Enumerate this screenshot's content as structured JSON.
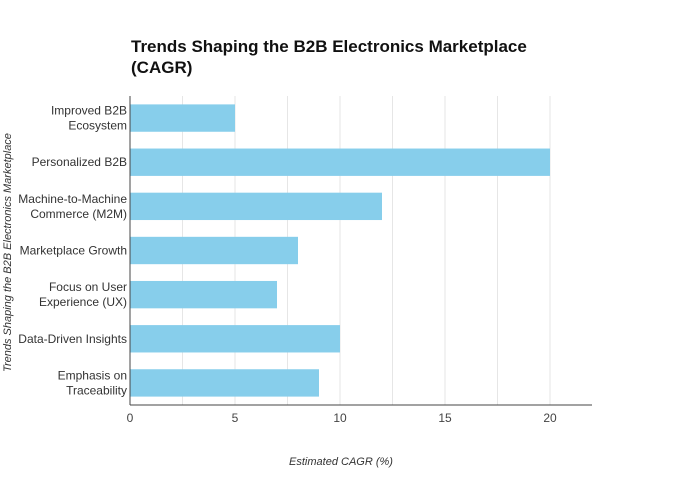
{
  "chart_data": {
    "type": "bar",
    "orientation": "horizontal",
    "title_lines": [
      "Trends Shaping the B2B Electronics Marketplace",
      "(CAGR)"
    ],
    "xlabel": "Estimated CAGR (%)",
    "ylabel": "Trends Shaping the B2B Electronics Marketplace",
    "categories": [
      {
        "lines": [
          "Improved B2B",
          "Ecosystem"
        ]
      },
      {
        "lines": [
          "Personalized B2B"
        ]
      },
      {
        "lines": [
          "Machine-to-Machine",
          "Commerce (M2M)"
        ]
      },
      {
        "lines": [
          "Marketplace Growth"
        ]
      },
      {
        "lines": [
          "Focus on User",
          "Experience (UX)"
        ]
      },
      {
        "lines": [
          "Data-Driven Insights"
        ]
      },
      {
        "lines": [
          "Emphasis on",
          "Traceability"
        ]
      }
    ],
    "values": [
      5,
      20,
      12,
      8,
      7,
      10,
      9
    ],
    "xlim": [
      0,
      22
    ],
    "xticks": [
      "0",
      "5",
      "10",
      "15",
      "20"
    ],
    "xtick_values": [
      0,
      5,
      10,
      15,
      20
    ],
    "minor_grid_values": [
      2.5,
      7.5,
      12.5,
      17.5,
      22.5
    ],
    "grid": true,
    "bar_color": "#87CEEB",
    "grid_color": "#e6e6e6"
  }
}
